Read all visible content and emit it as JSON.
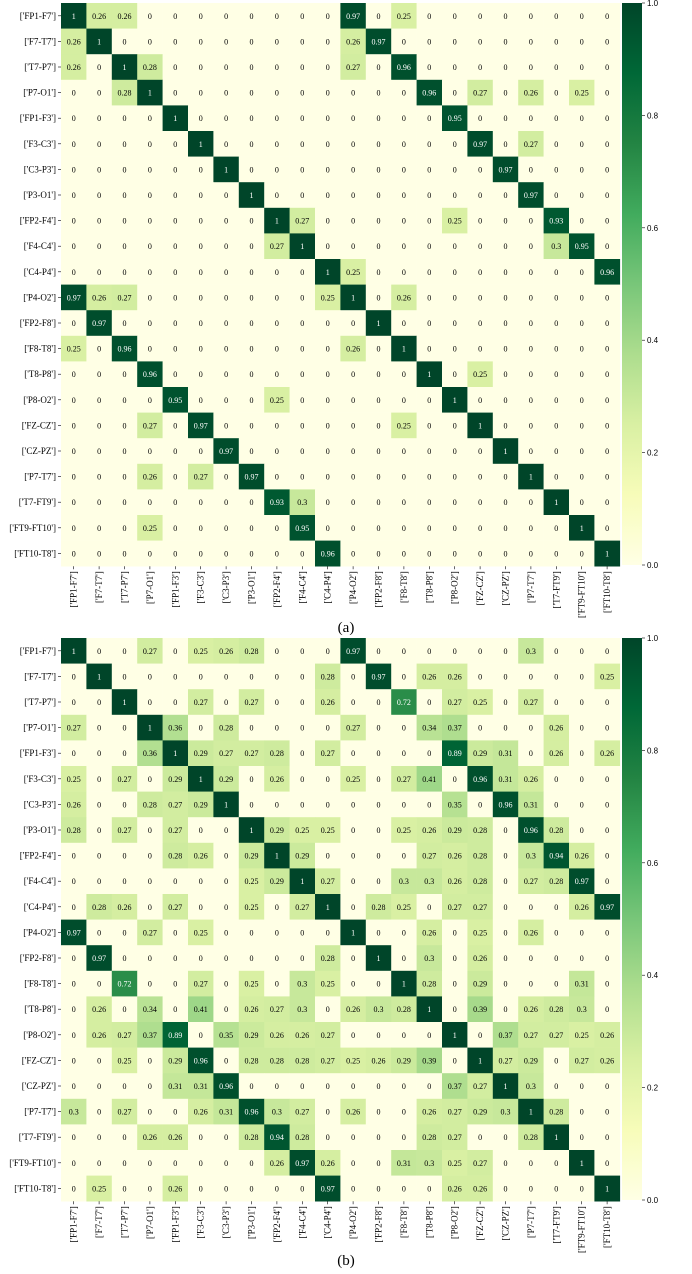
{
  "chart_data": [
    {
      "type": "heatmap",
      "caption": "(a)",
      "labels": [
        "['FP1-F7']",
        "['F7-T7']",
        "['T7-P7']",
        "['P7-O1']",
        "['FP1-F3']",
        "['F3-C3']",
        "['C3-P3']",
        "['P3-O1']",
        "['FP2-F4']",
        "['F4-C4']",
        "['C4-P4']",
        "['P4-O2']",
        "['FP2-F8']",
        "['F8-T8']",
        "['T8-P8']",
        "['P8-O2']",
        "['FZ-CZ']",
        "['CZ-PZ']",
        "['P7-T7']",
        "['T7-FT9']",
        "['FT9-FT10']",
        "['FT10-T8']"
      ],
      "colorbar_ticks": [
        "0.0",
        "0.2",
        "0.4",
        "0.6",
        "0.8",
        "1.0"
      ],
      "vmin": 0,
      "vmax": 1,
      "colormap": "YlGn",
      "matrix": [
        [
          1,
          0.26,
          0.26,
          0,
          0,
          0,
          0,
          0,
          0,
          0,
          0,
          0.97,
          0,
          0.25,
          0,
          0,
          0,
          0,
          0,
          0,
          0,
          0
        ],
        [
          0.26,
          1,
          0,
          0,
          0,
          0,
          0,
          0,
          0,
          0,
          0,
          0.26,
          0.97,
          0,
          0,
          0,
          0,
          0,
          0,
          0,
          0,
          0
        ],
        [
          0.26,
          0,
          1,
          0.28,
          0,
          0,
          0,
          0,
          0,
          0,
          0,
          0.27,
          0,
          0.96,
          0,
          0,
          0,
          0,
          0,
          0,
          0,
          0
        ],
        [
          0,
          0,
          0.28,
          1,
          0,
          0,
          0,
          0,
          0,
          0,
          0,
          0,
          0,
          0,
          0.96,
          0,
          0.27,
          0,
          0.26,
          0,
          0.25,
          0
        ],
        [
          0,
          0,
          0,
          0,
          1,
          0,
          0,
          0,
          0,
          0,
          0,
          0,
          0,
          0,
          0,
          0.95,
          0,
          0,
          0,
          0,
          0,
          0
        ],
        [
          0,
          0,
          0,
          0,
          0,
          1,
          0,
          0,
          0,
          0,
          0,
          0,
          0,
          0,
          0,
          0,
          0.97,
          0,
          0.27,
          0,
          0,
          0
        ],
        [
          0,
          0,
          0,
          0,
          0,
          0,
          1,
          0,
          0,
          0,
          0,
          0,
          0,
          0,
          0,
          0,
          0,
          0.97,
          0,
          0,
          0,
          0
        ],
        [
          0,
          0,
          0,
          0,
          0,
          0,
          0,
          1,
          0,
          0,
          0,
          0,
          0,
          0,
          0,
          0,
          0,
          0,
          0.97,
          0,
          0,
          0
        ],
        [
          0,
          0,
          0,
          0,
          0,
          0,
          0,
          0,
          1,
          0.27,
          0,
          0,
          0,
          0,
          0,
          0.25,
          0,
          0,
          0,
          0.93,
          0,
          0
        ],
        [
          0,
          0,
          0,
          0,
          0,
          0,
          0,
          0,
          0.27,
          1,
          0,
          0,
          0,
          0,
          0,
          0,
          0,
          0,
          0,
          0.3,
          0.95,
          0
        ],
        [
          0,
          0,
          0,
          0,
          0,
          0,
          0,
          0,
          0,
          0,
          1,
          0.25,
          0,
          0,
          0,
          0,
          0,
          0,
          0,
          0,
          0,
          0.96
        ],
        [
          0.97,
          0.26,
          0.27,
          0,
          0,
          0,
          0,
          0,
          0,
          0,
          0.25,
          1,
          0,
          0.26,
          0,
          0,
          0,
          0,
          0,
          0,
          0,
          0
        ],
        [
          0,
          0.97,
          0,
          0,
          0,
          0,
          0,
          0,
          0,
          0,
          0,
          0,
          1,
          0,
          0,
          0,
          0,
          0,
          0,
          0,
          0,
          0
        ],
        [
          0.25,
          0,
          0.96,
          0,
          0,
          0,
          0,
          0,
          0,
          0,
          0,
          0.26,
          0,
          1,
          0,
          0,
          0,
          0,
          0,
          0,
          0,
          0
        ],
        [
          0,
          0,
          0,
          0.96,
          0,
          0,
          0,
          0,
          0,
          0,
          0,
          0,
          0,
          0,
          1,
          0,
          0.25,
          0,
          0,
          0,
          0,
          0
        ],
        [
          0,
          0,
          0,
          0,
          0.95,
          0,
          0,
          0,
          0.25,
          0,
          0,
          0,
          0,
          0,
          0,
          1,
          0,
          0,
          0,
          0,
          0,
          0
        ],
        [
          0,
          0,
          0,
          0.27,
          0,
          0.97,
          0,
          0,
          0,
          0,
          0,
          0,
          0,
          0.25,
          0,
          0,
          1,
          0,
          0,
          0,
          0,
          0
        ],
        [
          0,
          0,
          0,
          0,
          0,
          0,
          0.97,
          0,
          0,
          0,
          0,
          0,
          0,
          0,
          0,
          0,
          0,
          1,
          0,
          0,
          0,
          0
        ],
        [
          0,
          0,
          0,
          0.26,
          0,
          0.27,
          0,
          0.97,
          0,
          0,
          0,
          0,
          0,
          0,
          0,
          0,
          0,
          0,
          1,
          0,
          0,
          0
        ],
        [
          0,
          0,
          0,
          0,
          0,
          0,
          0,
          0,
          0.93,
          0.3,
          0,
          0,
          0,
          0,
          0,
          0,
          0,
          0,
          0,
          1,
          0,
          0
        ],
        [
          0,
          0,
          0,
          0.25,
          0,
          0,
          0,
          0,
          0,
          0.95,
          0,
          0,
          0,
          0,
          0,
          0,
          0,
          0,
          0,
          0,
          1,
          0
        ],
        [
          0,
          0,
          0,
          0,
          0,
          0,
          0,
          0,
          0,
          0,
          0.96,
          0,
          0,
          0,
          0,
          0,
          0,
          0,
          0,
          0,
          0,
          1
        ]
      ]
    },
    {
      "type": "heatmap",
      "caption": "(b)",
      "labels": [
        "['FP1-F7']",
        "['F7-T7']",
        "['T7-P7']",
        "['P7-O1']",
        "['FP1-F3']",
        "['F3-C3']",
        "['C3-P3']",
        "['P3-O1']",
        "['FP2-F4']",
        "['F4-C4']",
        "['C4-P4']",
        "['P4-O2']",
        "['FP2-F8']",
        "['F8-T8']",
        "['T8-P8']",
        "['P8-O2']",
        "['FZ-CZ']",
        "['CZ-PZ']",
        "['P7-T7']",
        "['T7-FT9']",
        "['FT9-FT10']",
        "['FT10-T8']"
      ],
      "colorbar_ticks": [
        "0.0",
        "0.2",
        "0.4",
        "0.6",
        "0.8",
        "1.0"
      ],
      "vmin": 0,
      "vmax": 1,
      "colormap": "YlGn",
      "matrix": [
        [
          1,
          0,
          0,
          0.27,
          0,
          0.25,
          0.26,
          0.28,
          0,
          0,
          0,
          0.97,
          0,
          0,
          0,
          0,
          0,
          0,
          0.3,
          0,
          0,
          0
        ],
        [
          0,
          1,
          0,
          0,
          0,
          0,
          0,
          0,
          0,
          0,
          0.28,
          0,
          0.97,
          0,
          0.26,
          0.26,
          0,
          0,
          0,
          0,
          0,
          0.25
        ],
        [
          0,
          0,
          1,
          0,
          0,
          0.27,
          0,
          0.27,
          0,
          0,
          0.26,
          0,
          0,
          0.72,
          0,
          0.27,
          0.25,
          0,
          0.27,
          0,
          0,
          0
        ],
        [
          0.27,
          0,
          0,
          1,
          0.36,
          0,
          0.28,
          0,
          0,
          0,
          0,
          0.27,
          0,
          0,
          0.34,
          0.37,
          0,
          0,
          0,
          0.26,
          0,
          0
        ],
        [
          0,
          0,
          0,
          0.36,
          1,
          0.29,
          0.27,
          0.27,
          0.28,
          0,
          0.27,
          0,
          0,
          0,
          0,
          0.89,
          0.29,
          0.31,
          0,
          0.26,
          0,
          0.26
        ],
        [
          0.25,
          0,
          0.27,
          0,
          0.29,
          1,
          0.29,
          0,
          0.26,
          0,
          0,
          0.25,
          0,
          0.27,
          0.41,
          0,
          0.96,
          0.31,
          0.26,
          0,
          0,
          0
        ],
        [
          0.26,
          0,
          0,
          0.28,
          0.27,
          0.29,
          1,
          0,
          0,
          0,
          0,
          0,
          0,
          0,
          0,
          0.35,
          0,
          0.96,
          0.31,
          0,
          0,
          0
        ],
        [
          0.28,
          0,
          0.27,
          0,
          0.27,
          0,
          0,
          1,
          0.29,
          0.25,
          0.25,
          0,
          0,
          0.25,
          0.26,
          0.29,
          0.28,
          0,
          0.96,
          0.28,
          0,
          0
        ],
        [
          0,
          0,
          0,
          0,
          0.28,
          0.26,
          0,
          0.29,
          1,
          0.29,
          0,
          0,
          0,
          0,
          0.27,
          0.26,
          0.28,
          0,
          0.3,
          0.94,
          0.26,
          0
        ],
        [
          0,
          0,
          0,
          0,
          0,
          0,
          0,
          0.25,
          0.29,
          1,
          0.27,
          0,
          0,
          0.3,
          0.3,
          0.26,
          0.28,
          0,
          0.27,
          0.28,
          0.97,
          0
        ],
        [
          0,
          0.28,
          0.26,
          0,
          0.27,
          0,
          0,
          0.25,
          0,
          0.27,
          1,
          0,
          0.28,
          0.25,
          0,
          0.27,
          0.27,
          0,
          0,
          0,
          0.26,
          0.97
        ],
        [
          0.97,
          0,
          0,
          0.27,
          0,
          0.25,
          0,
          0,
          0,
          0,
          0,
          1,
          0,
          0,
          0.26,
          0,
          0.25,
          0,
          0.26,
          0,
          0,
          0
        ],
        [
          0,
          0.97,
          0,
          0,
          0,
          0,
          0,
          0,
          0,
          0,
          0.28,
          0,
          1,
          0,
          0.3,
          0,
          0.26,
          0,
          0,
          0,
          0,
          0
        ],
        [
          0,
          0,
          0.72,
          0,
          0,
          0.27,
          0,
          0.25,
          0,
          0.3,
          0.25,
          0,
          0,
          1,
          0.28,
          0,
          0.29,
          0,
          0,
          0,
          0.31,
          0
        ],
        [
          0,
          0.26,
          0,
          0.34,
          0,
          0.41,
          0,
          0.26,
          0.27,
          0.3,
          0,
          0.26,
          0.3,
          0.28,
          1,
          0,
          0.39,
          0,
          0.26,
          0.28,
          0.3,
          0
        ],
        [
          0,
          0.26,
          0.27,
          0.37,
          0.89,
          0,
          0.35,
          0.29,
          0.26,
          0.26,
          0.27,
          0,
          0,
          0,
          0,
          1,
          0,
          0.37,
          0.27,
          0.27,
          0.25,
          0.26
        ],
        [
          0,
          0,
          0.25,
          0,
          0.29,
          0.96,
          0,
          0.28,
          0.28,
          0.28,
          0.27,
          0.25,
          0.26,
          0.29,
          0.39,
          0,
          1,
          0.27,
          0.29,
          0,
          0.27,
          0.26
        ],
        [
          0,
          0,
          0,
          0,
          0.31,
          0.31,
          0.96,
          0,
          0,
          0,
          0,
          0,
          0,
          0,
          0,
          0.37,
          0.27,
          1,
          0.3,
          0,
          0,
          0
        ],
        [
          0.3,
          0,
          0.27,
          0,
          0,
          0.26,
          0.31,
          0.96,
          0.3,
          0.27,
          0,
          0.26,
          0,
          0,
          0.26,
          0.27,
          0.29,
          0.3,
          1,
          0.28,
          0,
          0
        ],
        [
          0,
          0,
          0,
          0.26,
          0.26,
          0,
          0,
          0.28,
          0.94,
          0.28,
          0,
          0,
          0,
          0,
          0.28,
          0.27,
          0,
          0,
          0.28,
          1,
          0,
          0
        ],
        [
          0,
          0,
          0,
          0,
          0,
          0,
          0,
          0,
          0.26,
          0.97,
          0.26,
          0,
          0,
          0.31,
          0.3,
          0.25,
          0.27,
          0,
          0,
          0,
          1,
          0
        ],
        [
          0,
          0.25,
          0,
          0,
          0.26,
          0,
          0,
          0,
          0,
          0,
          0.97,
          0,
          0,
          0,
          0,
          0.26,
          0.26,
          0,
          0,
          0,
          0,
          1
        ]
      ]
    }
  ]
}
